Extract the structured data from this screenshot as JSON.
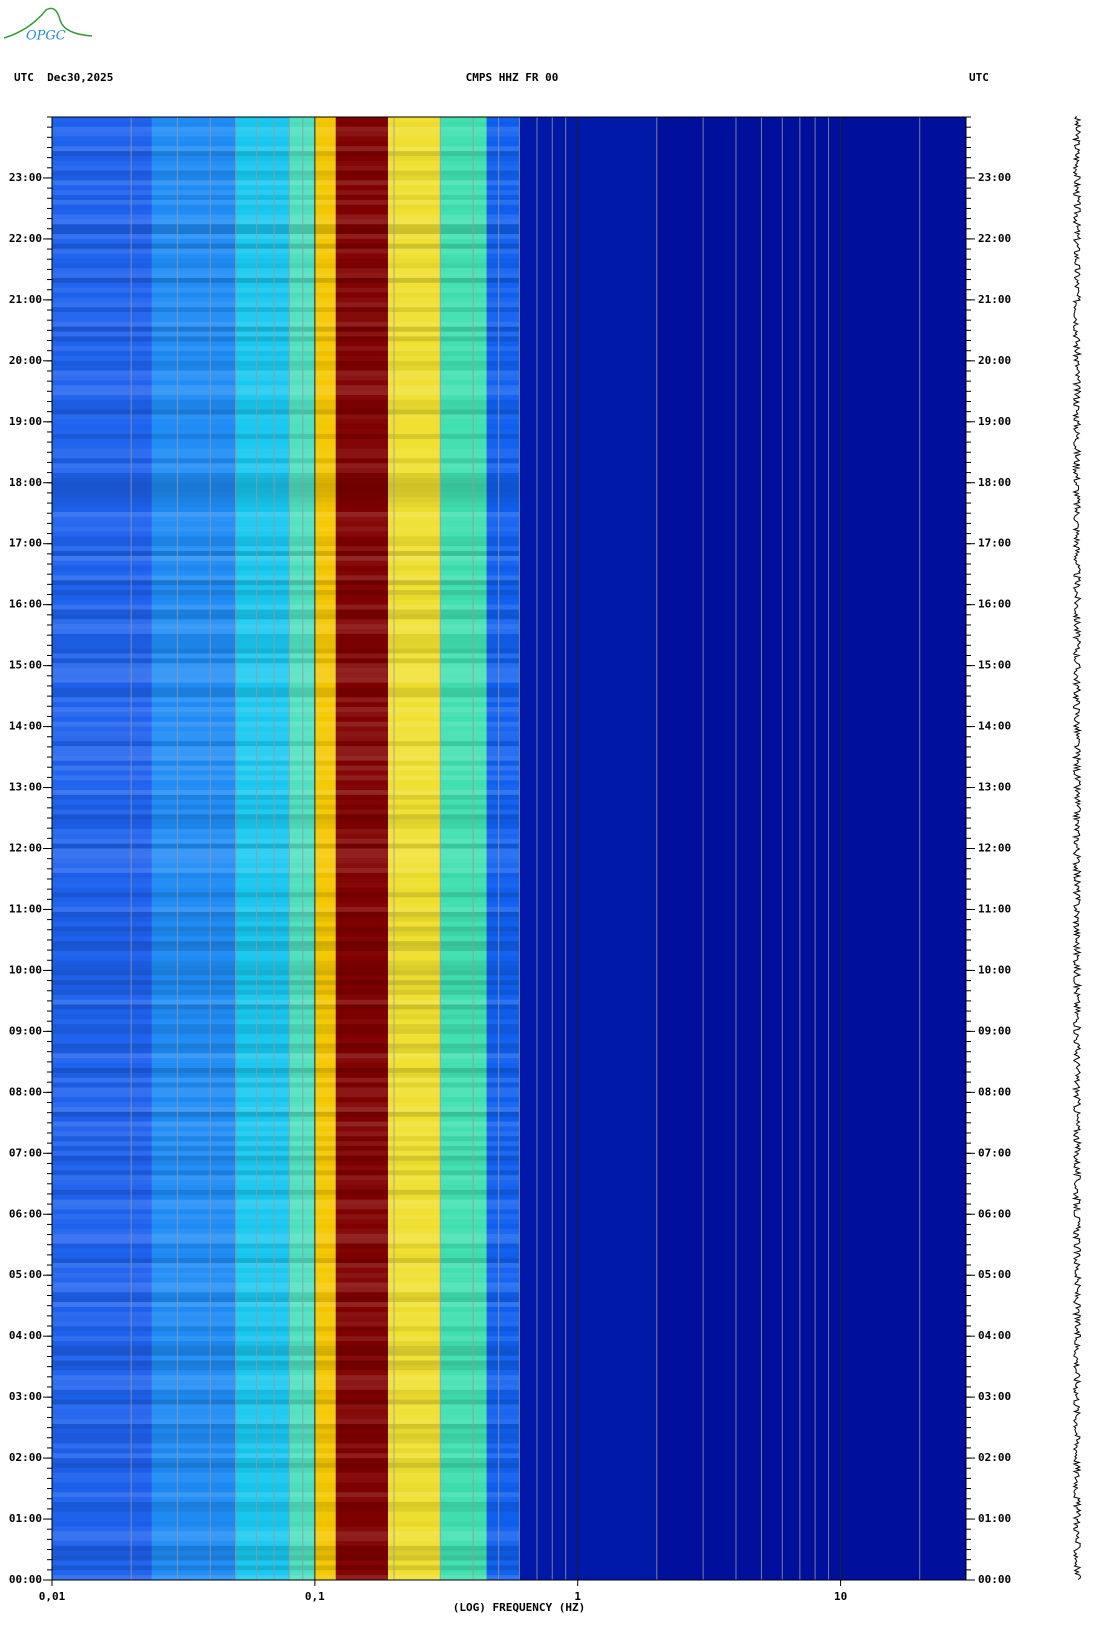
{
  "logo": "OPGC",
  "chart_data": {
    "type": "spectrogram",
    "title_left": "UTC  Dec30,2025",
    "title": "CMPS HHZ FR 00",
    "title_right": "UTC",
    "x_label": "(LOG) FREQUENCY (HZ)",
    "log_x": true,
    "xlim": [
      0.01,
      30
    ],
    "xticks": [
      {
        "value": 0.01,
        "label": "0,01"
      },
      {
        "value": 0.1,
        "label": "0,1"
      },
      1,
      10
    ],
    "ylim": [
      0,
      24
    ],
    "yticks": [
      {
        "value": 0,
        "label": "00:00"
      },
      {
        "value": 1,
        "label": "01:00"
      },
      {
        "value": 2,
        "label": "02:00"
      },
      {
        "value": 3,
        "label": "03:00"
      },
      {
        "value": 4,
        "label": "04:00"
      },
      {
        "value": 5,
        "label": "05:00"
      },
      {
        "value": 6,
        "label": "06:00"
      },
      {
        "value": 7,
        "label": "07:00"
      },
      {
        "value": 8,
        "label": "08:00"
      },
      {
        "value": 9,
        "label": "09:00"
      },
      {
        "value": 10,
        "label": "10:00"
      },
      {
        "value": 11,
        "label": "11:00"
      },
      {
        "value": 12,
        "label": "12:00"
      },
      {
        "value": 13,
        "label": "13:00"
      },
      {
        "value": 14,
        "label": "14:00"
      },
      {
        "value": 15,
        "label": "15:00"
      },
      {
        "value": 16,
        "label": "16:00"
      },
      {
        "value": 17,
        "label": "17:00"
      },
      {
        "value": 18,
        "label": "18:00"
      },
      {
        "value": 19,
        "label": "19:00"
      },
      {
        "value": 20,
        "label": "20:00"
      },
      {
        "value": 21,
        "label": "21:00"
      },
      {
        "value": 22,
        "label": "22:00"
      },
      {
        "value": 23,
        "label": "23:00"
      }
    ],
    "bands": [
      {
        "from": 0.01,
        "to": 0.024,
        "color": "#1e62ee"
      },
      {
        "from": 0.024,
        "to": 0.05,
        "color": "#1f8cf5"
      },
      {
        "from": 0.05,
        "to": 0.08,
        "color": "#18c8f0"
      },
      {
        "from": 0.08,
        "to": 0.1,
        "color": "#4fe0c0"
      },
      {
        "from": 0.1,
        "to": 0.12,
        "color": "#f4c800"
      },
      {
        "from": 0.12,
        "to": 0.19,
        "color": "#800000"
      },
      {
        "from": 0.19,
        "to": 0.3,
        "color": "#f0e030"
      },
      {
        "from": 0.3,
        "to": 0.45,
        "color": "#40e0b0"
      },
      {
        "from": 0.45,
        "to": 0.6,
        "color": "#1060f0"
      },
      {
        "from": 0.6,
        "to": 2,
        "color": "#0018a8"
      },
      {
        "from": 2,
        "to": 30,
        "color": "#00109c"
      }
    ],
    "grid": true
  }
}
